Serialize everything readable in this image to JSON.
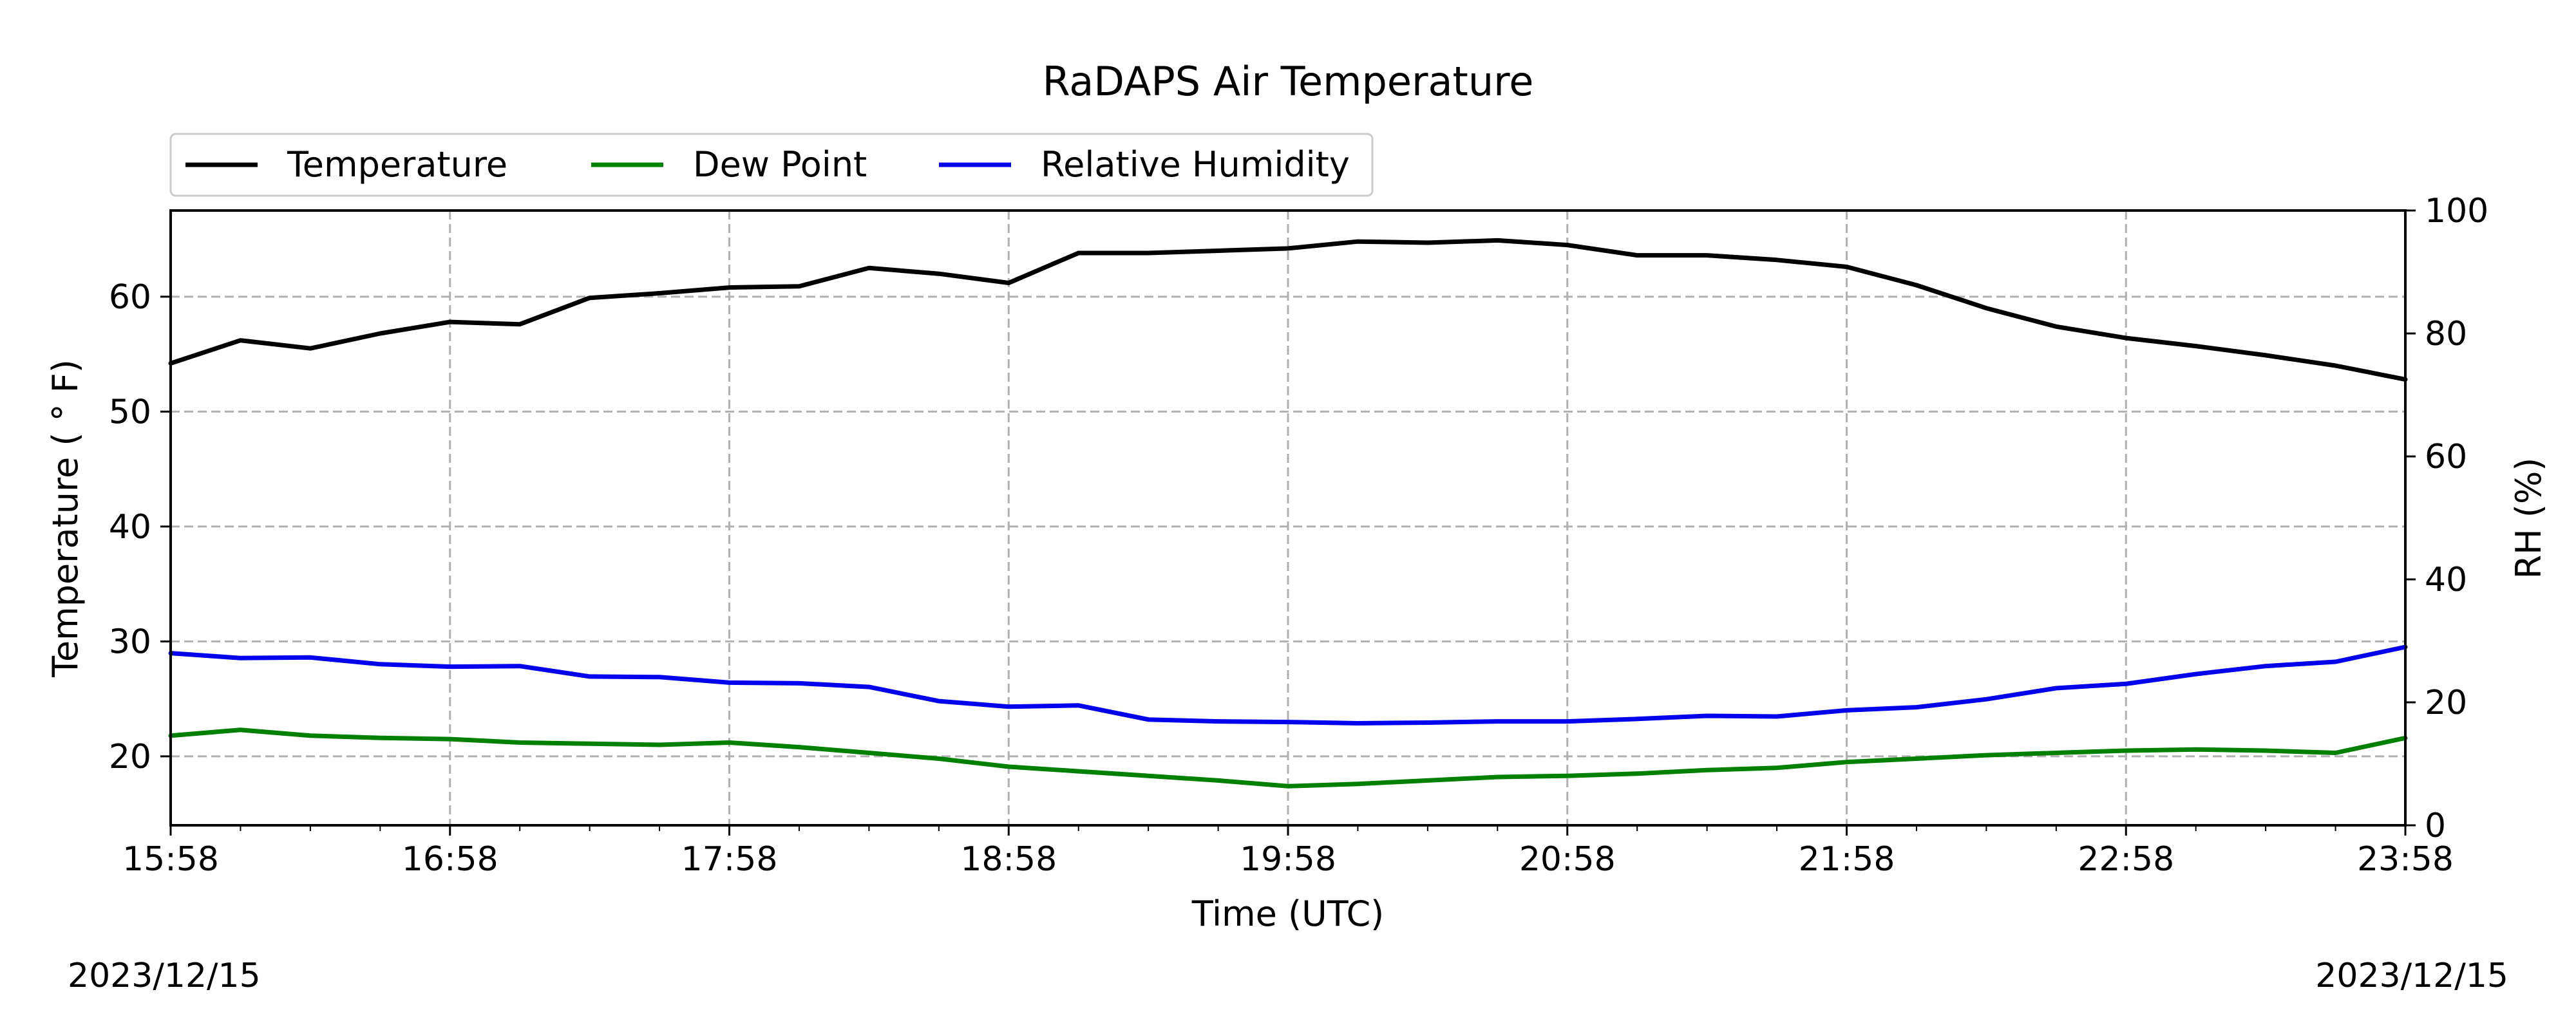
{
  "chart_data": {
    "type": "line",
    "title": "RaDAPS Air Temperature",
    "xlabel": "Time (UTC)",
    "ylabel": "Temperature ($^\\circ$F)",
    "ylabel_text": "Temperature ( ° F)",
    "y2label": "RH (%)",
    "x_ticks": [
      "15:58",
      "16:58",
      "17:58",
      "18:58",
      "19:58",
      "20:58",
      "21:58",
      "22:58",
      "23:58"
    ],
    "ylim": [
      14,
      67.5
    ],
    "y_ticks": [
      20,
      30,
      40,
      50,
      60
    ],
    "y2lim": [
      0,
      100
    ],
    "y2_ticks": [
      0,
      20,
      40,
      60,
      80,
      100
    ],
    "grid": true,
    "legend_position": "top-left, above plot",
    "start_date": "2023/12/15",
    "end_date": "2023/12/15",
    "series": [
      {
        "name": "Temperature",
        "axis": "left",
        "color": "#000000",
        "x": [
          "15:58",
          "16:13",
          "16:28",
          "16:43",
          "16:58",
          "17:13",
          "17:28",
          "17:43",
          "17:58",
          "18:13",
          "18:28",
          "18:43",
          "18:58",
          "19:13",
          "19:28",
          "19:43",
          "19:58",
          "20:13",
          "20:28",
          "20:43",
          "20:58",
          "21:13",
          "21:28",
          "21:43",
          "21:58",
          "22:13",
          "22:28",
          "22:43",
          "22:58",
          "23:13",
          "23:28",
          "23:43",
          "23:58"
        ],
        "values": [
          54.2,
          56.2,
          55.5,
          56.8,
          57.8,
          57.6,
          59.9,
          60.3,
          60.8,
          60.9,
          62.5,
          62.0,
          61.2,
          63.8,
          63.8,
          64.0,
          64.2,
          64.8,
          64.7,
          64.9,
          64.5,
          63.6,
          63.6,
          63.2,
          62.6,
          61.0,
          59.0,
          57.4,
          56.4,
          55.7,
          54.9,
          54.0,
          52.8
        ]
      },
      {
        "name": "Dew Point",
        "axis": "left",
        "color": "#008000",
        "x": [
          "15:58",
          "16:13",
          "16:28",
          "16:43",
          "16:58",
          "17:13",
          "17:28",
          "17:43",
          "17:58",
          "18:13",
          "18:28",
          "18:43",
          "18:58",
          "19:13",
          "19:28",
          "19:43",
          "19:58",
          "20:13",
          "20:28",
          "20:43",
          "20:58",
          "21:13",
          "21:28",
          "21:43",
          "21:58",
          "22:13",
          "22:28",
          "22:43",
          "22:58",
          "23:13",
          "23:28",
          "23:43",
          "23:58"
        ],
        "values": [
          21.8,
          22.3,
          21.8,
          21.6,
          21.5,
          21.2,
          21.1,
          21.0,
          21.2,
          20.8,
          20.3,
          19.8,
          19.1,
          18.7,
          18.3,
          17.9,
          17.4,
          17.6,
          17.9,
          18.2,
          18.3,
          18.5,
          18.8,
          19.0,
          19.5,
          19.8,
          20.1,
          20.3,
          20.5,
          20.6,
          20.5,
          20.3,
          21.6
        ]
      },
      {
        "name": "Relative Humidity",
        "axis": "right",
        "color": "#0000ee",
        "x": [
          "15:58",
          "16:13",
          "16:28",
          "16:43",
          "16:58",
          "17:13",
          "17:28",
          "17:43",
          "17:58",
          "18:13",
          "18:28",
          "18:43",
          "18:58",
          "19:13",
          "19:28",
          "19:43",
          "19:58",
          "20:13",
          "20:28",
          "20:43",
          "20:58",
          "21:13",
          "21:28",
          "21:43",
          "21:58",
          "22:13",
          "22:28",
          "22:43",
          "22:58",
          "23:13",
          "23:28",
          "23:43",
          "23:58"
        ],
        "values": [
          28.0,
          27.2,
          27.3,
          26.2,
          25.8,
          25.9,
          24.2,
          24.1,
          23.2,
          23.1,
          22.5,
          20.2,
          19.3,
          19.5,
          17.2,
          16.9,
          16.8,
          16.6,
          16.7,
          16.9,
          16.9,
          17.3,
          17.8,
          17.7,
          18.7,
          19.2,
          20.5,
          22.3,
          23.0,
          24.6,
          25.9,
          26.6,
          29.0
        ]
      }
    ]
  }
}
